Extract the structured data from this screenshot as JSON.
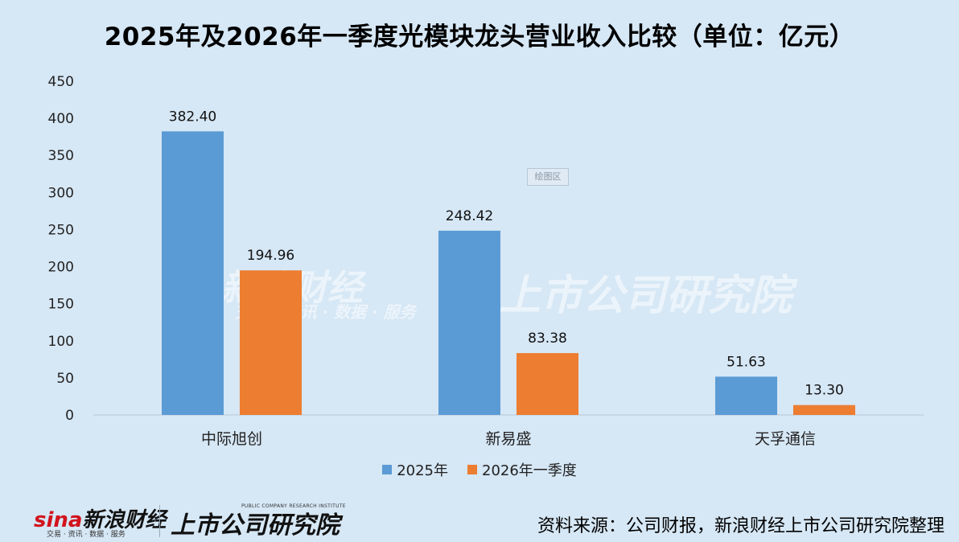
{
  "title": "2025年及2026年一季度光模块龙头营业收入比较（单位：亿元）",
  "plot_area_tag": "绘图区",
  "watermark": {
    "sina": "新浪财经",
    "sina_sub": "交易 · 资讯 · 数据 · 服务",
    "institute": "上市公司研究院"
  },
  "footer": {
    "sina_logo": "新浪财经",
    "sina_logo_prefix": "sina",
    "sina_sub": "交易 · 资讯 · 数据 · 服务",
    "institute": "上市公司研究院",
    "institute_en": "PUBLIC COMPANY RESEARCH INSTITUTE",
    "source": "资料来源：公司财报，新浪财经上市公司研究院整理"
  },
  "colors": {
    "series1": "#5b9bd5",
    "series2": "#ed7d31",
    "background": "#d6e7f5"
  },
  "chart_data": {
    "type": "bar",
    "categories": [
      "中际旭创",
      "新易盛",
      "天孚通信"
    ],
    "series": [
      {
        "name": "2025年",
        "values": [
          382.4,
          248.42,
          51.63
        ],
        "labels": [
          "382.40",
          "248.42",
          "51.63"
        ]
      },
      {
        "name": "2026年一季度",
        "values": [
          194.96,
          83.38,
          13.3
        ],
        "labels": [
          "194.96",
          "83.38",
          "13.30"
        ]
      }
    ],
    "ylim": [
      0,
      450
    ],
    "yticks": [
      "0",
      "50",
      "100",
      "150",
      "200",
      "250",
      "300",
      "350",
      "400",
      "450"
    ],
    "grid": false,
    "legend": "bottom"
  }
}
